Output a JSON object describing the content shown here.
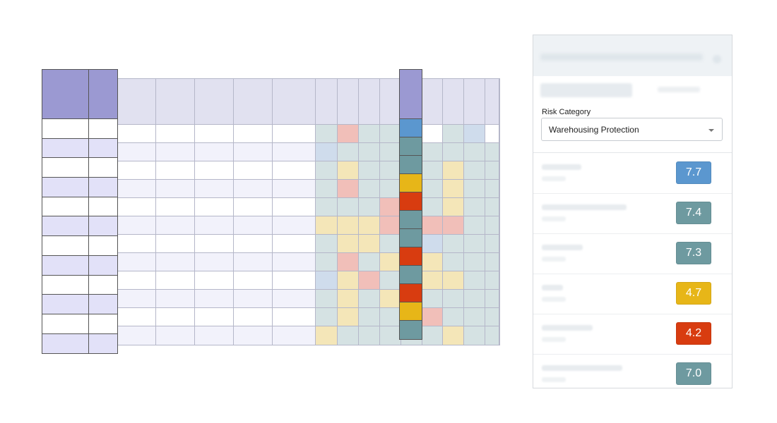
{
  "panel": {
    "category_label": "Risk Category",
    "category_value": "Warehousing Protection",
    "risk_items": [
      {
        "score": "7.7",
        "color": "#5b97cf"
      },
      {
        "score": "7.4",
        "color": "#6e9aa0"
      },
      {
        "score": "7.3",
        "color": "#6e9aa0"
      },
      {
        "score": "4.7",
        "color": "#e7b618"
      },
      {
        "score": "4.2",
        "color": "#d83c10"
      },
      {
        "score": "7.0",
        "color": "#6e9aa0"
      }
    ]
  },
  "colors": {
    "frozen_header": "#9b99d2",
    "frozen_shade": "#e2e1f8",
    "grid_header": "#e1e1f0",
    "light": "#f2f2fb",
    "heat": {
      "N": "#d5e2e3",
      "Y": "#f4e6b8",
      "P": "#f1bfb9",
      "B": "#cfdcec",
      "T": "#6e9aa0",
      "Bb": "#5b97cf",
      "O": "#e7b618",
      "R": "#d83c10"
    }
  },
  "heatmap_rows": [
    [
      "N",
      "P",
      "N",
      "N",
      "W",
      "W",
      "N",
      "B",
      "W"
    ],
    [
      "B",
      "N",
      "N",
      "N",
      "N",
      "N",
      "N",
      "N",
      "N"
    ],
    [
      "N",
      "Y",
      "N",
      "N",
      "N",
      "N",
      "Y",
      "N",
      "N"
    ],
    [
      "N",
      "P",
      "N",
      "N",
      "N",
      "N",
      "Y",
      "N",
      "N"
    ],
    [
      "N",
      "N",
      "N",
      "P",
      "N",
      "N",
      "Y",
      "N",
      "N"
    ],
    [
      "Y",
      "Y",
      "Y",
      "P",
      "N",
      "P",
      "P",
      "N",
      "N"
    ],
    [
      "N",
      "Y",
      "Y",
      "N",
      "N",
      "B",
      "N",
      "N",
      "N"
    ],
    [
      "N",
      "P",
      "N",
      "Y",
      "N",
      "Y",
      "N",
      "N",
      "N"
    ],
    [
      "B",
      "Y",
      "P",
      "N",
      "N",
      "Y",
      "Y",
      "N",
      "N"
    ],
    [
      "N",
      "Y",
      "N",
      "Y",
      "N",
      "N",
      "N",
      "N",
      "N"
    ],
    [
      "N",
      "Y",
      "N",
      "N",
      "N",
      "P",
      "N",
      "N",
      "N"
    ],
    [
      "Y",
      "N",
      "N",
      "N",
      "N",
      "N",
      "Y",
      "N",
      "N"
    ]
  ],
  "highlight_column": [
    "Bb",
    "T",
    "T",
    "O",
    "R",
    "T",
    "T",
    "R",
    "T",
    "R",
    "O",
    "T"
  ]
}
